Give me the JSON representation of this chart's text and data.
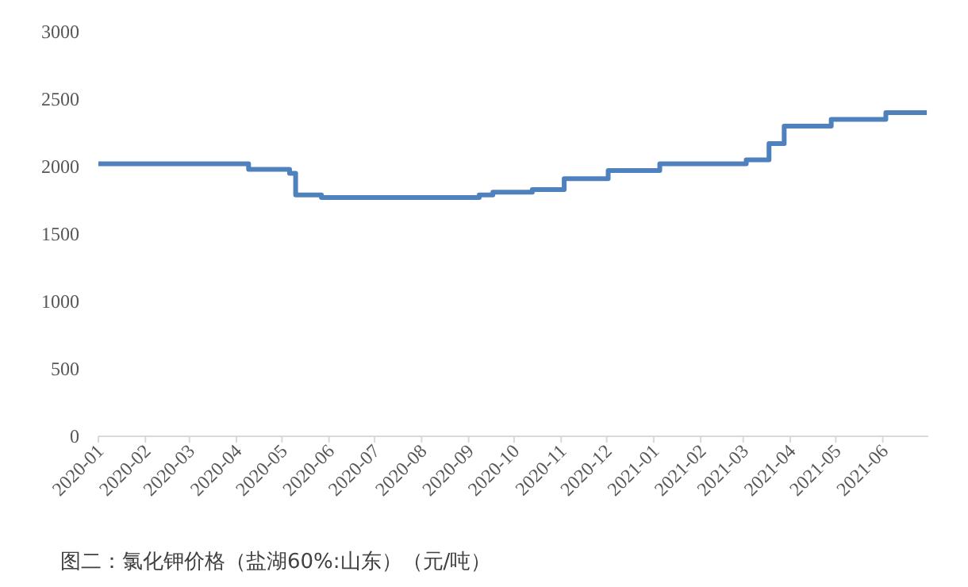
{
  "chart_data": {
    "type": "step",
    "x": [
      "2020-01-01",
      "2020-04-09",
      "2020-05-06",
      "2020-05-10",
      "2020-05-27",
      "2020-09-08",
      "2020-09-17",
      "2020-10-13",
      "2020-11-03",
      "2020-12-02",
      "2021-01-05",
      "2021-03-03",
      "2021-03-18",
      "2021-03-28",
      "2021-04-28",
      "2021-06-03",
      "2021-06-30"
    ],
    "series": [
      {
        "color": "#4f81bd",
        "values": [
          2020,
          1980,
          1950,
          1790,
          1770,
          1790,
          1810,
          1830,
          1910,
          1970,
          2020,
          2050,
          2170,
          2300,
          2350,
          2400,
          2400
        ]
      }
    ],
    "xlim": [
      "2020-01-01",
      "2021-07-01"
    ],
    "xticks": [
      "2020-01",
      "2020-02",
      "2020-03",
      "2020-04",
      "2020-05",
      "2020-06",
      "2020-07",
      "2020-08",
      "2020-09",
      "2020-10",
      "2020-11",
      "2020-12",
      "2021-01",
      "2021-02",
      "2021-03",
      "2021-04",
      "2021-05",
      "2021-06"
    ],
    "ylim": [
      0,
      3000
    ],
    "yticks": [
      0,
      500,
      1000,
      1500,
      2000,
      2500,
      3000
    ],
    "grid": false,
    "marker": "none",
    "line_style": "solid",
    "annotations": [
      "图二：氯化钾价格（盐湖60%:山东）（元/吨）"
    ]
  }
}
